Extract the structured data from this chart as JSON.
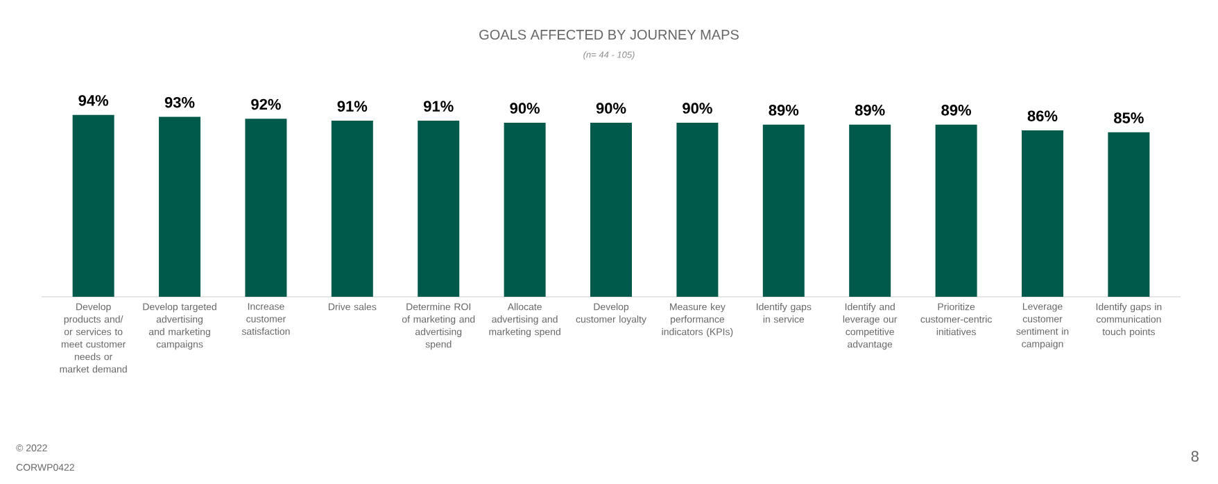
{
  "chart_data": {
    "type": "bar",
    "title": "GOALS AFFECTED BY JOURNEY MAPS",
    "subtitle": "(n= 44 - 105)",
    "categories": [
      "Develop products and/ or services to meet customer needs or market demand",
      "Develop targeted advertising and marketing campaigns",
      "Increase customer satisfaction",
      "Drive sales",
      "Determine ROI of marketing and advertising spend",
      "Allocate advertising and marketing spend",
      "Develop customer loyalty",
      "Measure key performance indicators (KPIs)",
      "Identify gaps in service",
      "Identify and leverage our competitive advantage",
      "Prioritize customer-centric initiatives",
      "Leverage customer sentiment in campaign",
      "Identify gaps in communication touch points"
    ],
    "values": [
      94,
      93,
      92,
      91,
      91,
      90,
      90,
      90,
      89,
      89,
      89,
      86,
      85
    ],
    "value_labels": [
      "94%",
      "93%",
      "92%",
      "91%",
      "91%",
      "90%",
      "90%",
      "90%",
      "89%",
      "89%",
      "89%",
      "86%",
      "85%"
    ],
    "color": "#005a4b",
    "tick_labels": "x",
    "annotations": [
      "© 2022",
      "CORWP0422",
      "8"
    ]
  }
}
